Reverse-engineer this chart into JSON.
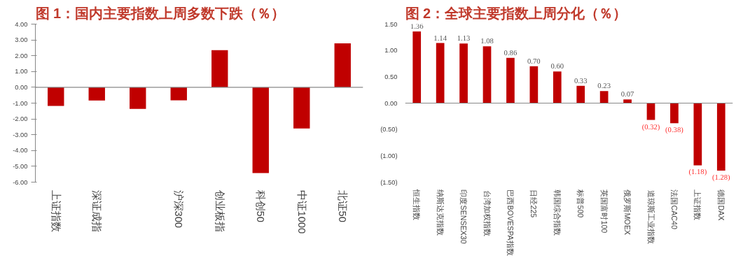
{
  "chart_data": [
    {
      "type": "bar",
      "title": "图 1：国内主要指数上周多数下跌（％）",
      "categories": [
        "上证指数",
        "深证成指",
        null,
        "沪深300",
        "创业板指",
        "科创50",
        "中证1000",
        "北证50"
      ],
      "series": [
        {
          "color": "#c00000",
          "values": [
            -1.18,
            -0.83,
            -1.36,
            -0.82,
            2.35,
            -5.42,
            -2.6,
            2.78
          ]
        }
      ],
      "ylim": [
        -6,
        4
      ],
      "yticks": [
        {
          "value": 4,
          "label": "4.00"
        },
        {
          "value": 3,
          "label": "3.00"
        },
        {
          "value": 2,
          "label": "2.00"
        },
        {
          "value": 1,
          "label": "1.00"
        },
        {
          "value": 0,
          "label": "0.00"
        },
        {
          "value": -1,
          "label": "-1.00"
        },
        {
          "value": -2,
          "label": "-2.00"
        },
        {
          "value": -3,
          "label": "-3.00"
        },
        {
          "value": -4,
          "label": "-4.00"
        },
        {
          "value": -5,
          "label": "-5.00"
        },
        {
          "value": -6,
          "label": "-6.00"
        }
      ]
    },
    {
      "type": "bar",
      "title": "图 2：全球主要指数上周分化（％）",
      "categories": [
        "恒生指数",
        "纳斯达克指数",
        "印度SENSEX30",
        "台湾加权指数",
        "巴西BOVESPA指数",
        "日经225",
        "韩国综合指数",
        "标普500",
        "英国富时100",
        "俄罗斯MOEX",
        "道琼斯工业指数",
        "法国CAC40",
        "上证指数",
        "德国DAX"
      ],
      "series": [
        {
          "color": "#c00000",
          "values": [
            1.36,
            1.14,
            1.13,
            1.08,
            0.86,
            0.7,
            0.6,
            0.33,
            0.23,
            0.07,
            -0.32,
            -0.38,
            -1.18,
            -1.28
          ],
          "value_labels": [
            "1.36",
            "1.14",
            "1.13",
            "1.08",
            "0.86",
            "0.70",
            "0.60",
            "0.33",
            "0.23",
            "0.07",
            "(0.32)",
            "(0.38)",
            "(1.18)",
            "(1.28)"
          ]
        }
      ],
      "ylim": [
        -1.5,
        1.5
      ],
      "yticks": [
        {
          "value": 1.5,
          "label": "1.50"
        },
        {
          "value": 1,
          "label": "1.00"
        },
        {
          "value": 0.5,
          "label": "0.50"
        },
        {
          "value": 0,
          "label": "0.00"
        },
        {
          "value": -0.5,
          "label": "(0.50)"
        },
        {
          "value": -1,
          "label": "(1.00)"
        },
        {
          "value": -1.5,
          "label": "(1.50)"
        }
      ]
    }
  ]
}
